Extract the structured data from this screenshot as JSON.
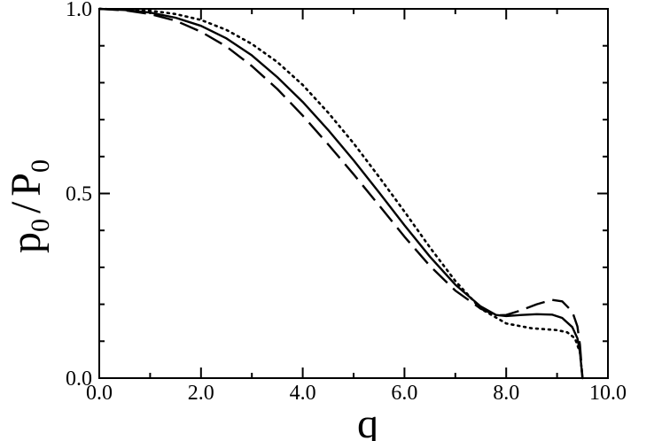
{
  "chart_data": {
    "type": "line",
    "title": "",
    "xlabel": "q",
    "ylabel": {
      "base1": "p",
      "sub1": "0",
      "sep": "/",
      "base2": "P",
      "sub2": "0"
    },
    "xlim": [
      0.0,
      10.0
    ],
    "ylim": [
      0.0,
      1.0
    ],
    "x_ticks": [
      0.0,
      2.0,
      4.0,
      6.0,
      8.0,
      10.0
    ],
    "x_tick_labels": [
      "0.0",
      "2.0",
      "4.0",
      "6.0",
      "8.0",
      "10.0"
    ],
    "x_minor_ticks": [
      1.0,
      3.0,
      5.0,
      7.0,
      9.0
    ],
    "y_ticks": [
      0.0,
      0.5,
      1.0
    ],
    "y_tick_labels": [
      "0.0",
      "0.5",
      "1.0"
    ],
    "y_minor_ticks": [
      0.1,
      0.2,
      0.3,
      0.4,
      0.6,
      0.7,
      0.8,
      0.9
    ],
    "grid": false,
    "legend": false,
    "series": [
      {
        "style": "solid",
        "color": "#000000",
        "points": [
          [
            0.0,
            1.0
          ],
          [
            0.5,
            0.997
          ],
          [
            1.0,
            0.99
          ],
          [
            1.5,
            0.976
          ],
          [
            2.0,
            0.954
          ],
          [
            2.5,
            0.92
          ],
          [
            3.0,
            0.874
          ],
          [
            3.5,
            0.815
          ],
          [
            4.0,
            0.748
          ],
          [
            4.5,
            0.672
          ],
          [
            5.0,
            0.59
          ],
          [
            5.5,
            0.503
          ],
          [
            6.0,
            0.414
          ],
          [
            6.5,
            0.329
          ],
          [
            7.0,
            0.253
          ],
          [
            7.5,
            0.194
          ],
          [
            7.8,
            0.171
          ],
          [
            8.0,
            0.168
          ],
          [
            8.3,
            0.171
          ],
          [
            8.6,
            0.173
          ],
          [
            8.9,
            0.172
          ],
          [
            9.1,
            0.163
          ],
          [
            9.3,
            0.138
          ],
          [
            9.4,
            0.108
          ],
          [
            9.45,
            0.07
          ],
          [
            9.5,
            0.0
          ]
        ]
      },
      {
        "style": "dashed",
        "color": "#000000",
        "points": [
          [
            0.0,
            1.0
          ],
          [
            0.5,
            0.996
          ],
          [
            1.0,
            0.986
          ],
          [
            1.5,
            0.968
          ],
          [
            2.0,
            0.938
          ],
          [
            2.5,
            0.898
          ],
          [
            3.0,
            0.845
          ],
          [
            3.5,
            0.783
          ],
          [
            4.0,
            0.711
          ],
          [
            4.5,
            0.633
          ],
          [
            5.0,
            0.552
          ],
          [
            5.5,
            0.468
          ],
          [
            6.0,
            0.383
          ],
          [
            6.5,
            0.304
          ],
          [
            7.0,
            0.237
          ],
          [
            7.5,
            0.188
          ],
          [
            7.8,
            0.17
          ],
          [
            8.0,
            0.171
          ],
          [
            8.3,
            0.184
          ],
          [
            8.6,
            0.2
          ],
          [
            8.9,
            0.212
          ],
          [
            9.1,
            0.208
          ],
          [
            9.3,
            0.18
          ],
          [
            9.4,
            0.14
          ],
          [
            9.45,
            0.09
          ],
          [
            9.5,
            0.0
          ]
        ]
      },
      {
        "style": "dotted",
        "color": "#000000",
        "points": [
          [
            0.0,
            1.0
          ],
          [
            0.5,
            0.998
          ],
          [
            1.0,
            0.995
          ],
          [
            1.5,
            0.986
          ],
          [
            2.0,
            0.97
          ],
          [
            2.5,
            0.943
          ],
          [
            3.0,
            0.905
          ],
          [
            3.5,
            0.856
          ],
          [
            4.0,
            0.794
          ],
          [
            4.5,
            0.719
          ],
          [
            5.0,
            0.636
          ],
          [
            5.5,
            0.545
          ],
          [
            6.0,
            0.451
          ],
          [
            6.5,
            0.354
          ],
          [
            7.0,
            0.263
          ],
          [
            7.5,
            0.188
          ],
          [
            8.0,
            0.148
          ],
          [
            8.5,
            0.135
          ],
          [
            9.0,
            0.13
          ],
          [
            9.2,
            0.124
          ],
          [
            9.35,
            0.108
          ],
          [
            9.45,
            0.07
          ],
          [
            9.5,
            0.0
          ]
        ]
      }
    ]
  }
}
